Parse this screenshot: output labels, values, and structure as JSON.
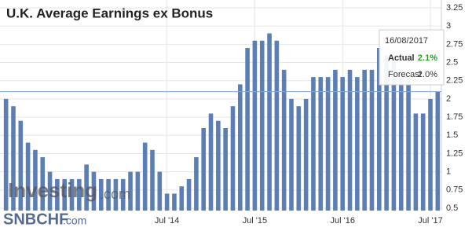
{
  "chart_data": {
    "type": "bar",
    "title": "U.K. Average Earnings ex Bonus",
    "categories": [
      null,
      null,
      null,
      null,
      null,
      null,
      null,
      null,
      null,
      null,
      null,
      null,
      null,
      null,
      null,
      null,
      null,
      null,
      null,
      null,
      null,
      null,
      "Jul '14",
      null,
      null,
      null,
      null,
      null,
      null,
      null,
      null,
      null,
      null,
      null,
      "Jul '15",
      null,
      null,
      null,
      null,
      null,
      null,
      null,
      null,
      null,
      null,
      null,
      "Jul '16",
      null,
      null,
      null,
      null,
      null,
      null,
      null,
      null,
      null,
      null,
      null,
      "Jul '17",
      null
    ],
    "values": [
      2.0,
      1.9,
      1.7,
      1.4,
      1.3,
      1.2,
      1.0,
      0.9,
      0.9,
      0.9,
      0.9,
      1.1,
      1.0,
      0.9,
      0.9,
      0.9,
      0.9,
      1.0,
      1.0,
      1.4,
      1.3,
      1.0,
      0.7,
      0.7,
      0.8,
      0.9,
      1.2,
      1.6,
      1.8,
      1.7,
      1.6,
      1.9,
      2.2,
      2.7,
      2.8,
      2.8,
      2.9,
      2.8,
      2.4,
      2.0,
      1.9,
      2.0,
      2.3,
      2.3,
      2.3,
      2.4,
      2.3,
      2.4,
      2.3,
      2.4,
      2.4,
      2.7,
      2.6,
      2.6,
      2.4,
      2.3,
      1.8,
      1.8,
      2.0,
      2.1
    ],
    "color": "#5b7fb5",
    "ylim": [
      0.5,
      3.25
    ],
    "yticks": [
      0.5,
      0.75,
      1,
      1.25,
      1.5,
      1.75,
      2,
      2.25,
      2.5,
      2.75,
      3,
      3.25
    ],
    "grid": true,
    "tooltip": {
      "date": "16/08/2017",
      "actual_label": "Actual",
      "actual_value": "2.1%",
      "forecast_label": "Forecast",
      "forecast_value": "2.0%"
    },
    "watermark": {
      "brand": "Investing",
      "suffix": ".com",
      "source": "SNBCHF",
      "source_suffix": ".com"
    }
  }
}
